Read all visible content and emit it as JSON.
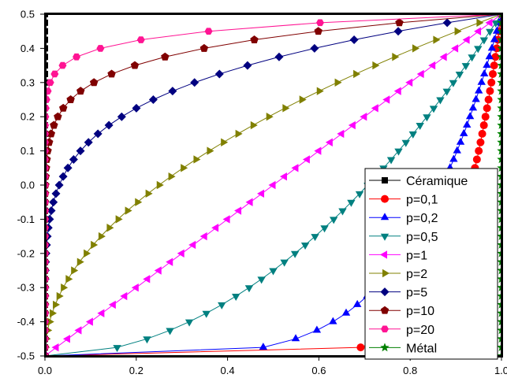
{
  "chart_data": {
    "type": "line",
    "title": "",
    "xlabel": "",
    "ylabel": "",
    "xlim": [
      0,
      1
    ],
    "ylim": [
      -0.5,
      0.5
    ],
    "x_ticks": [
      "0.0",
      "0.2",
      "0.4",
      "0.6",
      "0.8",
      "1.0"
    ],
    "y_ticks": [
      "0.5",
      "0.4",
      "0.3",
      "0.2",
      "0.1",
      "0.0",
      "-0.1",
      "-0.2",
      "-0.3",
      "-0.4",
      "-0.5"
    ],
    "grid": false,
    "legend_position": "bottom-right",
    "z_values": [
      -0.5,
      -0.475,
      -0.45,
      -0.425,
      -0.4,
      -0.375,
      -0.35,
      -0.325,
      -0.3,
      -0.275,
      -0.25,
      -0.225,
      -0.2,
      -0.175,
      -0.15,
      -0.125,
      -0.1,
      -0.075,
      -0.05,
      -0.025,
      0,
      0.025,
      0.05,
      0.075,
      0.1,
      0.125,
      0.15,
      0.175,
      0.2,
      0.225,
      0.25,
      0.275,
      0.3,
      0.325,
      0.35,
      0.375,
      0.4,
      0.425,
      0.45,
      0.475,
      0.5
    ],
    "series": [
      {
        "name": "Céramique",
        "exponent": 0,
        "color": "#000000",
        "marker": "square"
      },
      {
        "name": "p=0,1",
        "exponent": 0.1,
        "color": "#ff0000",
        "marker": "circle"
      },
      {
        "name": "p=0,2",
        "exponent": 0.2,
        "color": "#0000ff",
        "marker": "triangle-up"
      },
      {
        "name": "p=0,5",
        "exponent": 0.5,
        "color": "#008080",
        "marker": "triangle-down"
      },
      {
        "name": "p=1",
        "exponent": 1,
        "color": "#ff00ff",
        "marker": "triangle-left"
      },
      {
        "name": "p=2",
        "exponent": 2,
        "color": "#808000",
        "marker": "triangle-right"
      },
      {
        "name": "p=5",
        "exponent": 5,
        "color": "#000080",
        "marker": "diamond"
      },
      {
        "name": "p=10",
        "exponent": 10,
        "color": "#800000",
        "marker": "pentagon"
      },
      {
        "name": "p=20",
        "exponent": 20,
        "color": "#ff1493",
        "marker": "hexagon"
      },
      {
        "name": "Métal",
        "exponent": "inf",
        "color": "#008000",
        "marker": "star"
      }
    ]
  }
}
